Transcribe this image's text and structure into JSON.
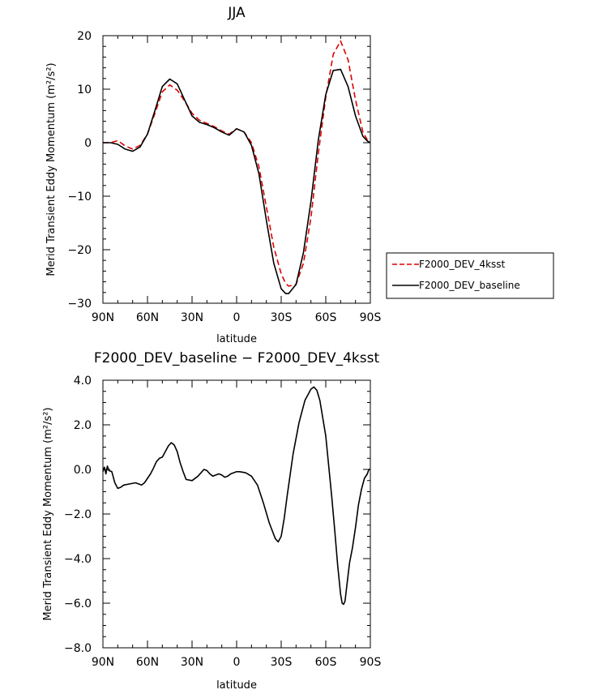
{
  "chart_data": [
    {
      "type": "line",
      "title": "JJA",
      "xlabel": "latitude",
      "ylabel": "Merid Transient Eddy Momentum (m²/s²)",
      "xlim": [
        -90,
        90
      ],
      "ylim": [
        -30,
        20
      ],
      "x_ticks": [
        {
          "value": -90,
          "label": "90N"
        },
        {
          "value": -60,
          "label": "60N"
        },
        {
          "value": -30,
          "label": "30N"
        },
        {
          "value": 0,
          "label": "0"
        },
        {
          "value": 30,
          "label": "30S"
        },
        {
          "value": 60,
          "label": "60S"
        },
        {
          "value": 90,
          "label": "90S"
        }
      ],
      "y_ticks": [
        {
          "value": 20,
          "label": "20"
        },
        {
          "value": 10,
          "label": "10"
        },
        {
          "value": 0,
          "label": "0"
        },
        {
          "value": -10,
          "label": "−10"
        },
        {
          "value": -20,
          "label": "−20"
        },
        {
          "value": -30,
          "label": "−30"
        }
      ],
      "legend_position": "right",
      "x": [
        -90,
        -85,
        -80,
        -75,
        -70,
        -65,
        -60,
        -55,
        -50,
        -45,
        -40,
        -35,
        -30,
        -25,
        -20,
        -15,
        -10,
        -5,
        0,
        5,
        10,
        15,
        20,
        25,
        30,
        33,
        35,
        40,
        45,
        50,
        55,
        60,
        65,
        70,
        75,
        80,
        85,
        88,
        90
      ],
      "series": [
        {
          "name": "F2000_DEV_4ksst",
          "color": "#dd0000",
          "dash": "dashed",
          "values": [
            0,
            0,
            0.4,
            -0.6,
            -1.2,
            -0.5,
            1.6,
            5.5,
            9.5,
            10.8,
            9.8,
            7.8,
            5.5,
            4.2,
            3.6,
            3,
            2.2,
            1.6,
            2.6,
            2,
            0,
            -4.5,
            -12,
            -19.5,
            -24.5,
            -26.3,
            -26.8,
            -26.5,
            -22.5,
            -14,
            -2,
            8.5,
            16.5,
            19,
            15.5,
            8,
            2,
            0.5,
            0
          ]
        },
        {
          "name": "F2000_DEV_baseline",
          "color": "#000000",
          "dash": "solid",
          "values": [
            0,
            0,
            -0.3,
            -1.2,
            -1.6,
            -0.8,
            1.6,
            6,
            10.5,
            11.9,
            11,
            8,
            5,
            3.8,
            3.4,
            2.8,
            2,
            1.4,
            2.6,
            2,
            -0.5,
            -5.8,
            -14.5,
            -22.5,
            -27.3,
            -28.2,
            -28.2,
            -26.5,
            -20.5,
            -11,
            0.5,
            9,
            13.5,
            13.7,
            10.5,
            5,
            1.2,
            0.3,
            0
          ]
        }
      ]
    },
    {
      "type": "line",
      "title": "F2000_DEV_baseline − F2000_DEV_4ksst",
      "xlabel": "latitude",
      "ylabel": "Merid Transient Eddy Momentum (m²/s²)",
      "xlim": [
        -90,
        90
      ],
      "ylim": [
        -8,
        4
      ],
      "x_ticks": [
        {
          "value": -90,
          "label": "90N"
        },
        {
          "value": -60,
          "label": "60N"
        },
        {
          "value": -30,
          "label": "30N"
        },
        {
          "value": 0,
          "label": "0"
        },
        {
          "value": 30,
          "label": "30S"
        },
        {
          "value": 60,
          "label": "60S"
        },
        {
          "value": 90,
          "label": "90S"
        }
      ],
      "y_ticks": [
        {
          "value": 4,
          "label": "4.0"
        },
        {
          "value": 2,
          "label": "2.0"
        },
        {
          "value": 0,
          "label": "0.0"
        },
        {
          "value": -2,
          "label": "−2.0"
        },
        {
          "value": -4,
          "label": "−4.0"
        },
        {
          "value": -6,
          "label": "−6.0"
        },
        {
          "value": -8,
          "label": "−8.0"
        }
      ],
      "x": [
        -90,
        -89,
        -88,
        -87,
        -86,
        -84,
        -82,
        -80,
        -78,
        -76,
        -72,
        -68,
        -64,
        -62,
        -60,
        -58,
        -56,
        -54,
        -52,
        -50,
        -48,
        -46,
        -44,
        -42,
        -40,
        -38,
        -36,
        -34,
        -30,
        -26,
        -22,
        -20,
        -18,
        -16,
        -14,
        -12,
        -10,
        -8,
        -6,
        -4,
        -2,
        0,
        2,
        6,
        10,
        14,
        18,
        22,
        26,
        28,
        30,
        32,
        34,
        38,
        42,
        46,
        50,
        52,
        54,
        56,
        60,
        64,
        66,
        68,
        70,
        71,
        72,
        73,
        74,
        76,
        78,
        80,
        82,
        84,
        86,
        88,
        89,
        90
      ],
      "series": [
        {
          "name": "",
          "color": "#000000",
          "dash": "solid",
          "values": [
            -0.1,
            0.1,
            -0.2,
            0.15,
            -0.05,
            -0.1,
            -0.6,
            -0.85,
            -0.8,
            -0.7,
            -0.65,
            -0.6,
            -0.7,
            -0.6,
            -0.4,
            -0.2,
            0.05,
            0.35,
            0.5,
            0.55,
            0.8,
            1.05,
            1.2,
            1.1,
            0.8,
            0.3,
            -0.1,
            -0.45,
            -0.5,
            -0.3,
            0,
            -0.05,
            -0.2,
            -0.3,
            -0.25,
            -0.2,
            -0.25,
            -0.35,
            -0.3,
            -0.2,
            -0.15,
            -0.1,
            -0.1,
            -0.15,
            -0.3,
            -0.7,
            -1.5,
            -2.4,
            -3.1,
            -3.25,
            -3.0,
            -2.2,
            -1.2,
            0.7,
            2.1,
            3.1,
            3.6,
            3.7,
            3.55,
            3.1,
            1.5,
            -1.2,
            -2.7,
            -4.3,
            -5.6,
            -6.0,
            -6.05,
            -5.9,
            -5.3,
            -4.2,
            -3.5,
            -2.6,
            -1.6,
            -0.9,
            -0.4,
            -0.2,
            0,
            0
          ]
        }
      ]
    }
  ]
}
